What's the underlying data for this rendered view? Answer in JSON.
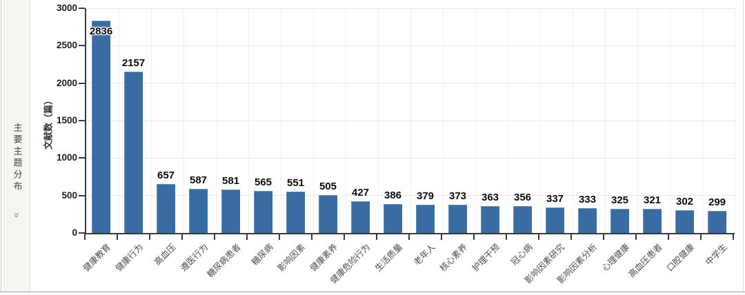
{
  "sidebar": {
    "title": "主要主题分布",
    "expand_icon": "»"
  },
  "chart_data": {
    "type": "bar",
    "title": "",
    "xlabel": "",
    "ylabel": "文献数（篇）",
    "ylim": [
      0,
      3000
    ],
    "yticks": [
      0,
      500,
      1000,
      1500,
      2000,
      2500,
      3000
    ],
    "grid": true,
    "legend": "none",
    "bar_color": "#3a6ca4",
    "categories": [
      "健康教育",
      "健康行为",
      "高血压",
      "遵医行为",
      "糖尿病患者",
      "糖尿病",
      "影响因素",
      "健康素养",
      "健康危险行为",
      "生活质量",
      "老年人",
      "核心素养",
      "护理干预",
      "冠心病",
      "影响因素研究",
      "影响因素分析",
      "心理健康",
      "高血压患者",
      "口腔健康",
      "中学生"
    ],
    "values": [
      2836,
      2157,
      657,
      587,
      581,
      565,
      551,
      505,
      427,
      386,
      379,
      373,
      363,
      356,
      337,
      333,
      325,
      321,
      302,
      299
    ]
  }
}
